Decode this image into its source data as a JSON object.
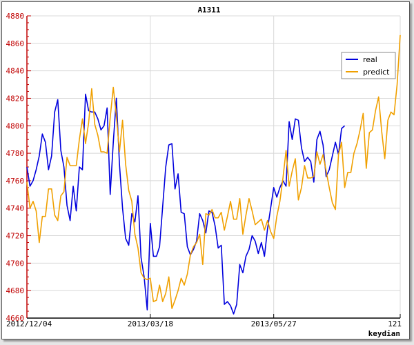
{
  "chart_data": {
    "type": "line",
    "title": "A1311",
    "xlabel": "keydian",
    "ylabel": "",
    "x_range": [
      0,
      121
    ],
    "x_tick_labels": [
      {
        "x": 0,
        "label": "2012/12/04"
      },
      {
        "x": 40,
        "label": "2013/03/18"
      },
      {
        "x": 80,
        "label": "2013/05/27"
      },
      {
        "x": 121,
        "label": "121"
      }
    ],
    "ylim": [
      4660,
      4880
    ],
    "y_ticks": [
      4660,
      4680,
      4700,
      4720,
      4740,
      4760,
      4780,
      4800,
      4820,
      4840,
      4860,
      4880
    ],
    "grid": true,
    "legend_position": "top-right",
    "series": [
      {
        "name": "real",
        "color": "#0000dd",
        "values": [
          4770,
          4756,
          4760,
          4768,
          4778,
          4794,
          4788,
          4768,
          4778,
          4810,
          4819,
          4782,
          4770,
          4742,
          4731,
          4756,
          4738,
          4770,
          4768,
          4823,
          4811,
          4810,
          4810,
          4805,
          4797,
          4800,
          4813,
          4750,
          4788,
          4820,
          4772,
          4740,
          4718,
          4713,
          4736,
          4730,
          4749,
          4704,
          4690,
          4666,
          4729,
          4705,
          4705,
          4712,
          4741,
          4770,
          4786,
          4787,
          4754,
          4765,
          4737,
          4736,
          4712,
          4706,
          4710,
          4716,
          4736,
          4731,
          4722,
          4738,
          4737,
          4727,
          4711,
          4713,
          4670,
          4672,
          4669,
          4663,
          4670,
          4699,
          4693,
          4705,
          4710,
          4720,
          4716,
          4707,
          4715,
          4705,
          4725,
          4740,
          4755,
          4748,
          4755,
          4760,
          4756,
          4803,
          4790,
          4805,
          4804,
          4784,
          4774,
          4777,
          4774,
          4759,
          4790,
          4796,
          4786,
          4763,
          4768,
          4778,
          4788,
          4779,
          4798,
          4800
        ]
      },
      {
        "name": "predict",
        "color": "#f0a000",
        "values": [
          4759,
          4740,
          4745,
          4738,
          4715,
          4734,
          4734,
          4754,
          4754,
          4735,
          4731,
          4749,
          4752,
          4777,
          4771,
          4771,
          4771,
          4790,
          4805,
          4787,
          4802,
          4827,
          4801,
          4793,
          4781,
          4781,
          4780,
          4806,
          4828,
          4807,
          4781,
          4804,
          4772,
          4753,
          4745,
          4721,
          4711,
          4693,
          4689,
          4688,
          4689,
          4672,
          4673,
          4684,
          4672,
          4678,
          4690,
          4667,
          4673,
          4680,
          4689,
          4684,
          4692,
          4706,
          4712,
          4715,
          4721,
          4699,
          4736,
          4735,
          4739,
          4733,
          4733,
          4737,
          4724,
          4734,
          4745,
          4732,
          4732,
          4747,
          4721,
          4735,
          4747,
          4738,
          4728,
          4730,
          4732,
          4724,
          4731,
          4723,
          4718,
          4734,
          4745,
          4762,
          4782,
          4756,
          4767,
          4776,
          4746,
          4755,
          4771,
          4762,
          4762,
          4763,
          4781,
          4772,
          4779,
          4767,
          4755,
          4744,
          4739,
          4779,
          4788,
          4755,
          4766,
          4766,
          4780,
          4787,
          4797,
          4809,
          4769,
          4795,
          4797,
          4811,
          4821,
          4796,
          4776,
          4804,
          4810,
          4808,
          4830,
          4866
        ]
      }
    ]
  }
}
